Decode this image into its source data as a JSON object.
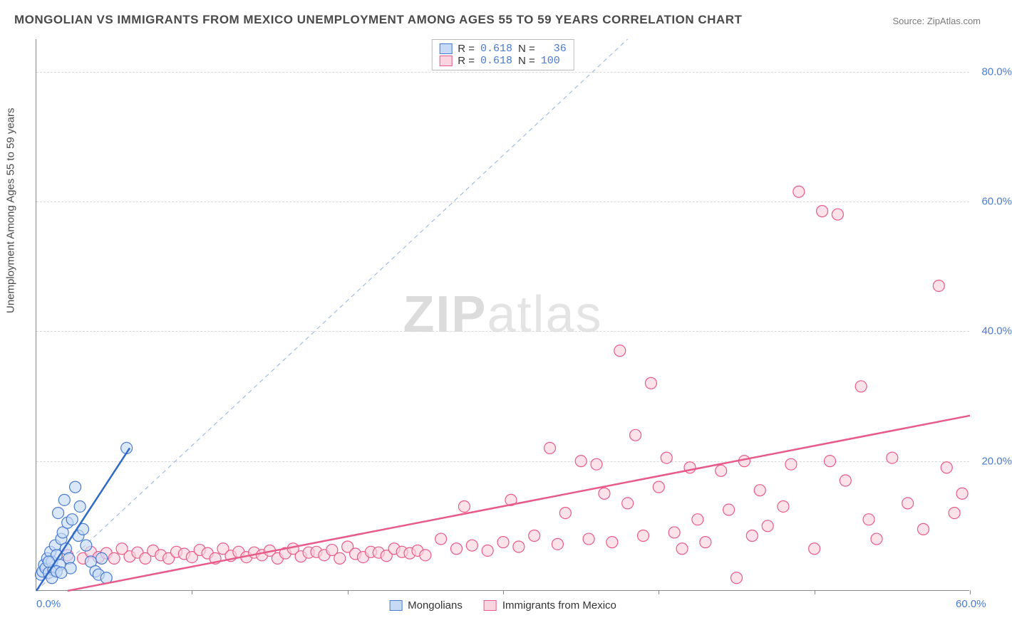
{
  "title": "MONGOLIAN VS IMMIGRANTS FROM MEXICO UNEMPLOYMENT AMONG AGES 55 TO 59 YEARS CORRELATION CHART",
  "source": "Source: ZipAtlas.com",
  "watermark_bold": "ZIP",
  "watermark_thin": "atlas",
  "y_axis_title": "Unemployment Among Ages 55 to 59 years",
  "chart": {
    "type": "scatter",
    "xlim": [
      0,
      60
    ],
    "ylim": [
      0,
      85
    ],
    "y_ticks": [
      20,
      40,
      60,
      80
    ],
    "y_tick_labels": [
      "20.0%",
      "40.0%",
      "60.0%",
      "80.0%"
    ],
    "x_ticks": [
      0,
      10,
      20,
      30,
      40,
      50,
      60
    ],
    "x_tick_labels_shown": {
      "0": "0.0%",
      "60": "60.0%"
    },
    "grid_color": "#d8d8d8",
    "background_color": "#ffffff",
    "axis_color": "#888888",
    "marker_radius": 8,
    "marker_stroke_width": 1.2,
    "trend_line_width": 2.5,
    "ref_line_width": 1,
    "ref_line_dash": "6,5"
  },
  "series": [
    {
      "name": "Mongolians",
      "color_fill": "#c6daf5",
      "color_stroke": "#4a7bd0",
      "line_color": "#3068c8",
      "r_value": "0.618",
      "n_value": "36",
      "trend": {
        "x1": 0,
        "y1": 0,
        "x2": 6,
        "y2": 22
      },
      "ref_line": {
        "x1": 0,
        "y1": 0,
        "x2": 38,
        "y2": 85
      },
      "points": [
        [
          0.3,
          2.5
        ],
        [
          0.4,
          3.0
        ],
        [
          0.5,
          4.0
        ],
        [
          0.6,
          3.5
        ],
        [
          0.7,
          5.0
        ],
        [
          0.8,
          2.8
        ],
        [
          0.9,
          6.0
        ],
        [
          1.0,
          4.5
        ],
        [
          1.1,
          3.2
        ],
        [
          1.2,
          7.0
        ],
        [
          1.3,
          5.5
        ],
        [
          1.4,
          12.0
        ],
        [
          1.5,
          4.0
        ],
        [
          1.6,
          8.0
        ],
        [
          1.7,
          9.0
        ],
        [
          1.8,
          14.0
        ],
        [
          1.9,
          6.5
        ],
        [
          2.0,
          10.5
        ],
        [
          2.1,
          5.0
        ],
        [
          2.3,
          11.0
        ],
        [
          2.5,
          16.0
        ],
        [
          2.7,
          8.5
        ],
        [
          2.8,
          13.0
        ],
        [
          3.0,
          9.5
        ],
        [
          3.2,
          7.0
        ],
        [
          3.5,
          4.5
        ],
        [
          3.8,
          3.0
        ],
        [
          4.0,
          2.5
        ],
        [
          4.2,
          5.0
        ],
        [
          4.5,
          2.0
        ],
        [
          1.0,
          2.0
        ],
        [
          1.3,
          3.0
        ],
        [
          0.8,
          4.5
        ],
        [
          2.2,
          3.5
        ],
        [
          5.8,
          22.0
        ],
        [
          1.6,
          2.8
        ]
      ]
    },
    {
      "name": "Immigrants from Mexico",
      "color_fill": "#fad4de",
      "color_stroke": "#e85a8a",
      "line_color": "#e85a8a",
      "r_value": "0.618",
      "n_value": "100",
      "trend": {
        "x1": 2,
        "y1": 0,
        "x2": 60,
        "y2": 27
      },
      "ref_line": null,
      "points": [
        [
          2,
          5.5
        ],
        [
          3,
          5.0
        ],
        [
          3.5,
          6.0
        ],
        [
          4,
          5.2
        ],
        [
          4.5,
          5.8
        ],
        [
          5,
          5.0
        ],
        [
          5.5,
          6.5
        ],
        [
          6,
          5.3
        ],
        [
          6.5,
          5.9
        ],
        [
          7,
          5.0
        ],
        [
          7.5,
          6.2
        ],
        [
          8,
          5.5
        ],
        [
          8.5,
          5.0
        ],
        [
          9,
          6.0
        ],
        [
          9.5,
          5.7
        ],
        [
          10,
          5.2
        ],
        [
          10.5,
          6.3
        ],
        [
          11,
          5.8
        ],
        [
          11.5,
          5.0
        ],
        [
          12,
          6.5
        ],
        [
          12.5,
          5.4
        ],
        [
          13,
          6.0
        ],
        [
          13.5,
          5.2
        ],
        [
          14,
          5.9
        ],
        [
          14.5,
          5.5
        ],
        [
          15,
          6.2
        ],
        [
          15.5,
          5.0
        ],
        [
          16,
          5.8
        ],
        [
          16.5,
          6.5
        ],
        [
          17,
          5.3
        ],
        [
          17.5,
          5.9
        ],
        [
          18,
          6.0
        ],
        [
          18.5,
          5.5
        ],
        [
          19,
          6.3
        ],
        [
          19.5,
          5.0
        ],
        [
          20,
          6.8
        ],
        [
          20.5,
          5.7
        ],
        [
          21,
          5.2
        ],
        [
          21.5,
          6.0
        ],
        [
          22,
          5.9
        ],
        [
          22.5,
          5.4
        ],
        [
          23,
          6.5
        ],
        [
          23.5,
          6.0
        ],
        [
          24,
          5.8
        ],
        [
          24.5,
          6.2
        ],
        [
          25,
          5.5
        ],
        [
          26,
          8.0
        ],
        [
          27,
          6.5
        ],
        [
          27.5,
          13.0
        ],
        [
          28,
          7.0
        ],
        [
          29,
          6.2
        ],
        [
          30,
          7.5
        ],
        [
          30.5,
          14.0
        ],
        [
          31,
          6.8
        ],
        [
          32,
          8.5
        ],
        [
          33,
          22.0
        ],
        [
          33.5,
          7.2
        ],
        [
          34,
          12.0
        ],
        [
          35,
          20.0
        ],
        [
          35.5,
          8.0
        ],
        [
          36,
          19.5
        ],
        [
          36.5,
          15.0
        ],
        [
          37,
          7.5
        ],
        [
          37.5,
          37.0
        ],
        [
          38,
          13.5
        ],
        [
          38.5,
          24.0
        ],
        [
          39,
          8.5
        ],
        [
          39.5,
          32.0
        ],
        [
          40,
          16.0
        ],
        [
          40.5,
          20.5
        ],
        [
          41,
          9.0
        ],
        [
          41.5,
          6.5
        ],
        [
          42,
          19.0
        ],
        [
          42.5,
          11.0
        ],
        [
          43,
          7.5
        ],
        [
          44,
          18.5
        ],
        [
          44.5,
          12.5
        ],
        [
          45,
          2.0
        ],
        [
          45.5,
          20.0
        ],
        [
          46,
          8.5
        ],
        [
          46.5,
          15.5
        ],
        [
          47,
          10.0
        ],
        [
          48,
          13.0
        ],
        [
          48.5,
          19.5
        ],
        [
          49,
          61.5
        ],
        [
          50,
          6.5
        ],
        [
          50.5,
          58.5
        ],
        [
          51,
          20.0
        ],
        [
          51.5,
          58.0
        ],
        [
          52,
          17.0
        ],
        [
          53,
          31.5
        ],
        [
          53.5,
          11.0
        ],
        [
          54,
          8.0
        ],
        [
          55,
          20.5
        ],
        [
          56,
          13.5
        ],
        [
          57,
          9.5
        ],
        [
          58,
          47.0
        ],
        [
          58.5,
          19.0
        ],
        [
          59,
          12.0
        ],
        [
          59.5,
          15.0
        ]
      ]
    }
  ],
  "legend_top": [
    {
      "swatch_fill": "#c6daf5",
      "swatch_stroke": "#4a7bd0",
      "r_label": "R =",
      "r_val": "0.618",
      "n_label": "N =",
      "n_val": "  36"
    },
    {
      "swatch_fill": "#fad4de",
      "swatch_stroke": "#e85a8a",
      "r_label": "R =",
      "r_val": "0.618",
      "n_label": "N =",
      "n_val": "100"
    }
  ],
  "legend_bottom": [
    {
      "swatch_fill": "#c6daf5",
      "swatch_stroke": "#4a7bd0",
      "label": "Mongolians"
    },
    {
      "swatch_fill": "#fad4de",
      "swatch_stroke": "#e85a8a",
      "label": "Immigrants from Mexico"
    }
  ]
}
